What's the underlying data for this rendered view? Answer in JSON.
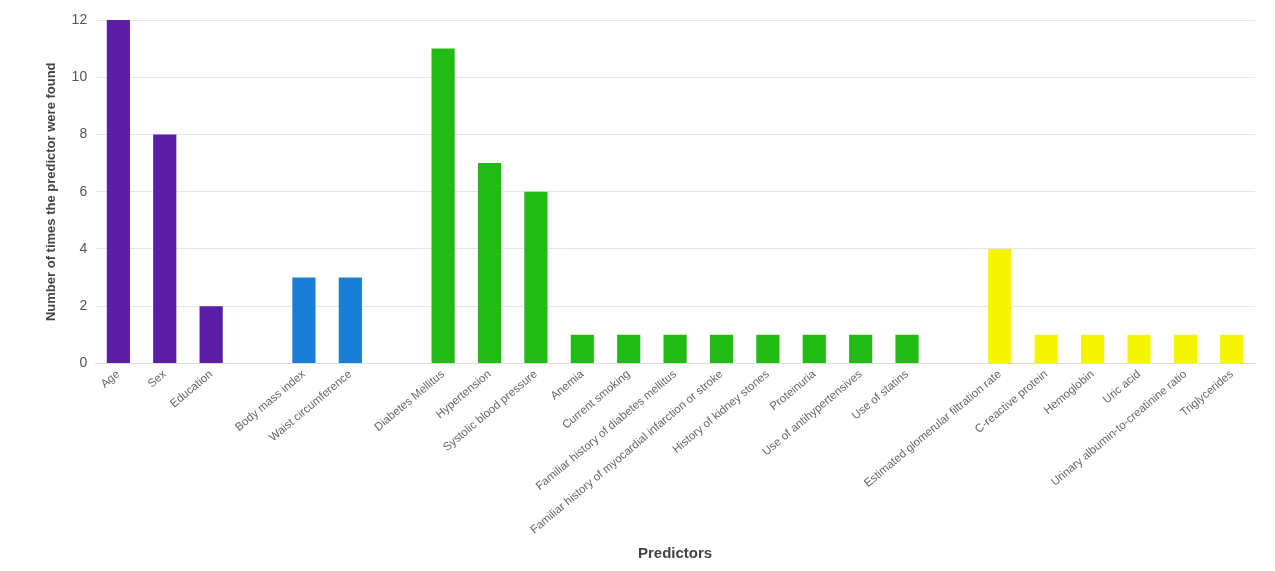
{
  "chart_data": {
    "type": "bar",
    "xlabel": "Predictors",
    "ylabel": "Number of times the predictor were found",
    "categories": [
      "Age",
      "Sex",
      "Education",
      null,
      "Body mass index",
      "Waist circumference",
      null,
      "Diabetes Mellitus",
      "Hypertension",
      "Systolic blood pressure",
      "Anemia",
      "Current smoking",
      "Familiar history of diabetes mellitus",
      "Familiar history of myocardial infarction or stroke",
      "History of kidney stones",
      "Proteinuria",
      "Use of antihypertensives",
      "Use of statins",
      null,
      "Estimated glomerular filtration rate",
      "C-reactive protein",
      "Hemoglobin",
      "Uric acid",
      "Urinary albumin-to-creatinine ratio",
      "Triglycerides"
    ],
    "values": [
      12,
      8,
      2,
      null,
      3,
      3,
      null,
      11,
      7,
      6,
      1,
      1,
      1,
      1,
      1,
      1,
      1,
      1,
      null,
      4,
      1,
      1,
      1,
      1,
      1
    ],
    "colors": [
      "#5a1fa6",
      "#5a1fa6",
      "#5a1fa6",
      "#5a1fa6",
      "#1a7dd8",
      "#1a7dd8",
      "#1a7dd8",
      "#22bb14",
      "#22bb14",
      "#22bb14",
      "#22bb14",
      "#22bb14",
      "#22bb14",
      "#22bb14",
      "#22bb14",
      "#22bb14",
      "#22bb14",
      "#22bb14",
      "#22bb14",
      "#f5f500",
      "#f5f500",
      "#f5f500",
      "#f5f500",
      "#f5f500",
      "#f5f500"
    ],
    "ylim": [
      0,
      12
    ],
    "yticks": [
      0,
      2,
      4,
      6,
      8,
      10,
      12
    ],
    "grid": "y",
    "legend": false
  }
}
